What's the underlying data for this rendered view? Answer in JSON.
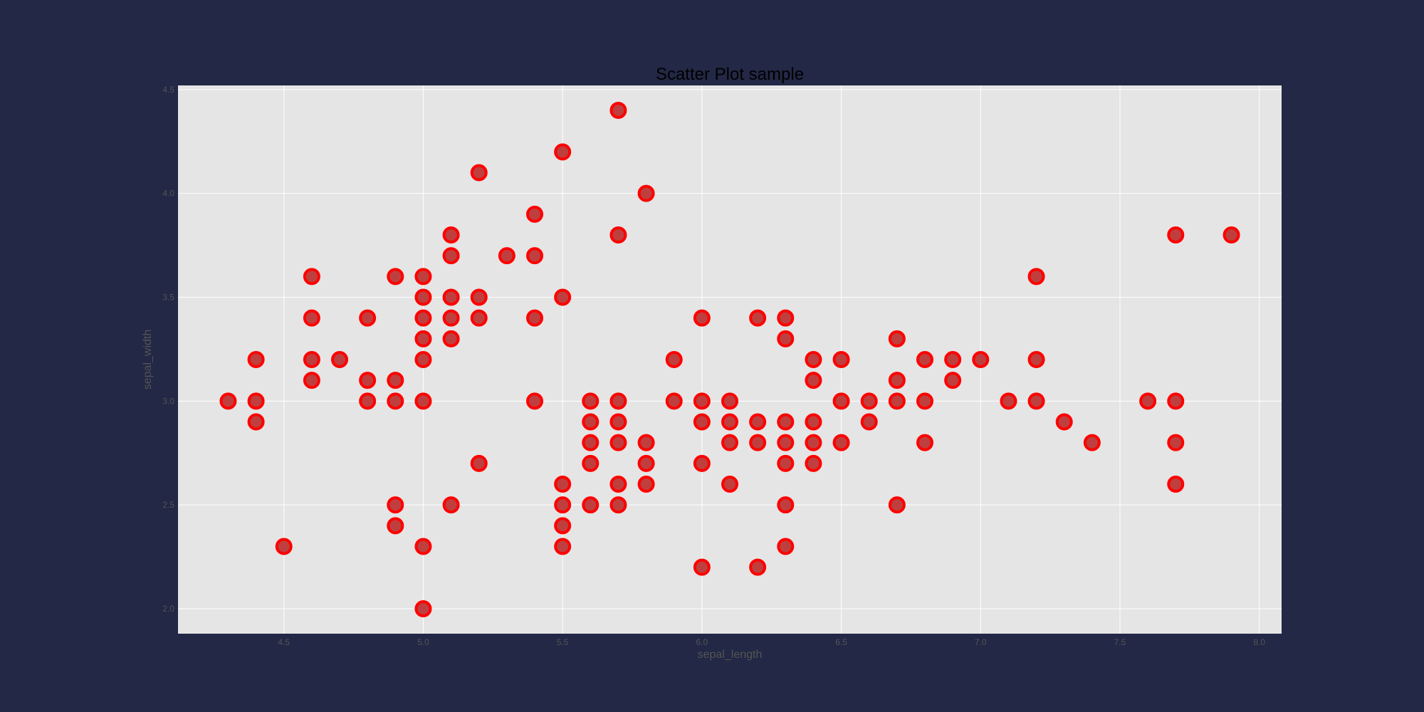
{
  "chart_data": {
    "type": "scatter",
    "title": "Scatter Plot sample",
    "xlabel": "sepal_length",
    "ylabel": "sepal_width",
    "xlim": [
      4.12,
      8.08
    ],
    "ylim": [
      1.88,
      4.52
    ],
    "xticks": [
      "4.5",
      "5.0",
      "5.5",
      "6.0",
      "6.5",
      "7.0",
      "7.5",
      "8.0"
    ],
    "yticks": [
      "2.0",
      "2.5",
      "3.0",
      "3.5",
      "4.0",
      "4.5"
    ],
    "grid": true,
    "colors": {
      "background": "#222845",
      "plot_area": "#e5e5e5",
      "grid": "#ffffff",
      "marker_fill": "#bf3f3f",
      "marker_edge": "#ff0000"
    },
    "series": [
      {
        "points": [
          [
            4.3,
            3.0
          ],
          [
            4.4,
            3.2
          ],
          [
            4.4,
            3.0
          ],
          [
            4.4,
            2.9
          ],
          [
            4.5,
            2.3
          ],
          [
            4.6,
            3.6
          ],
          [
            4.6,
            3.4
          ],
          [
            4.6,
            3.2
          ],
          [
            4.6,
            3.1
          ],
          [
            4.7,
            3.2
          ],
          [
            4.8,
            3.4
          ],
          [
            4.8,
            3.1
          ],
          [
            4.8,
            3.0
          ],
          [
            4.9,
            3.6
          ],
          [
            4.9,
            3.1
          ],
          [
            4.9,
            3.0
          ],
          [
            4.9,
            2.5
          ],
          [
            4.9,
            2.4
          ],
          [
            5.0,
            3.6
          ],
          [
            5.0,
            3.5
          ],
          [
            5.0,
            3.4
          ],
          [
            5.0,
            3.3
          ],
          [
            5.0,
            3.2
          ],
          [
            5.0,
            3.0
          ],
          [
            5.0,
            2.3
          ],
          [
            5.0,
            2.0
          ],
          [
            5.1,
            3.8
          ],
          [
            5.1,
            3.7
          ],
          [
            5.1,
            3.5
          ],
          [
            5.1,
            3.4
          ],
          [
            5.1,
            3.3
          ],
          [
            5.1,
            2.5
          ],
          [
            5.2,
            4.1
          ],
          [
            5.2,
            3.5
          ],
          [
            5.2,
            3.4
          ],
          [
            5.2,
            2.7
          ],
          [
            5.3,
            3.7
          ],
          [
            5.4,
            3.9
          ],
          [
            5.4,
            3.7
          ],
          [
            5.4,
            3.4
          ],
          [
            5.4,
            3.0
          ],
          [
            5.5,
            4.2
          ],
          [
            5.5,
            3.5
          ],
          [
            5.5,
            2.6
          ],
          [
            5.5,
            2.5
          ],
          [
            5.5,
            2.4
          ],
          [
            5.5,
            2.3
          ],
          [
            5.6,
            3.0
          ],
          [
            5.6,
            2.9
          ],
          [
            5.6,
            2.8
          ],
          [
            5.6,
            2.7
          ],
          [
            5.6,
            2.5
          ],
          [
            5.7,
            4.4
          ],
          [
            5.7,
            3.8
          ],
          [
            5.7,
            3.0
          ],
          [
            5.7,
            2.9
          ],
          [
            5.7,
            2.8
          ],
          [
            5.7,
            2.6
          ],
          [
            5.7,
            2.5
          ],
          [
            5.8,
            4.0
          ],
          [
            5.8,
            2.8
          ],
          [
            5.8,
            2.7
          ],
          [
            5.8,
            2.6
          ],
          [
            5.9,
            3.2
          ],
          [
            5.9,
            3.0
          ],
          [
            6.0,
            3.4
          ],
          [
            6.0,
            3.0
          ],
          [
            6.0,
            2.9
          ],
          [
            6.0,
            2.7
          ],
          [
            6.0,
            2.2
          ],
          [
            6.1,
            3.0
          ],
          [
            6.1,
            2.9
          ],
          [
            6.1,
            2.8
          ],
          [
            6.1,
            2.6
          ],
          [
            6.2,
            3.4
          ],
          [
            6.2,
            2.9
          ],
          [
            6.2,
            2.8
          ],
          [
            6.2,
            2.2
          ],
          [
            6.3,
            3.4
          ],
          [
            6.3,
            3.3
          ],
          [
            6.3,
            2.9
          ],
          [
            6.3,
            2.8
          ],
          [
            6.3,
            2.7
          ],
          [
            6.3,
            2.5
          ],
          [
            6.3,
            2.3
          ],
          [
            6.4,
            3.2
          ],
          [
            6.4,
            3.1
          ],
          [
            6.4,
            2.9
          ],
          [
            6.4,
            2.8
          ],
          [
            6.4,
            2.7
          ],
          [
            6.5,
            3.2
          ],
          [
            6.5,
            3.0
          ],
          [
            6.5,
            2.8
          ],
          [
            6.6,
            3.0
          ],
          [
            6.6,
            2.9
          ],
          [
            6.7,
            3.3
          ],
          [
            6.7,
            3.1
          ],
          [
            6.7,
            3.0
          ],
          [
            6.7,
            2.5
          ],
          [
            6.8,
            3.2
          ],
          [
            6.8,
            3.0
          ],
          [
            6.8,
            2.8
          ],
          [
            6.9,
            3.2
          ],
          [
            6.9,
            3.1
          ],
          [
            7.0,
            3.2
          ],
          [
            7.1,
            3.0
          ],
          [
            7.2,
            3.6
          ],
          [
            7.2,
            3.2
          ],
          [
            7.2,
            3.0
          ],
          [
            7.3,
            2.9
          ],
          [
            7.4,
            2.8
          ],
          [
            7.6,
            3.0
          ],
          [
            7.7,
            3.8
          ],
          [
            7.7,
            3.0
          ],
          [
            7.7,
            2.8
          ],
          [
            7.7,
            2.6
          ],
          [
            7.9,
            3.8
          ]
        ]
      }
    ]
  }
}
